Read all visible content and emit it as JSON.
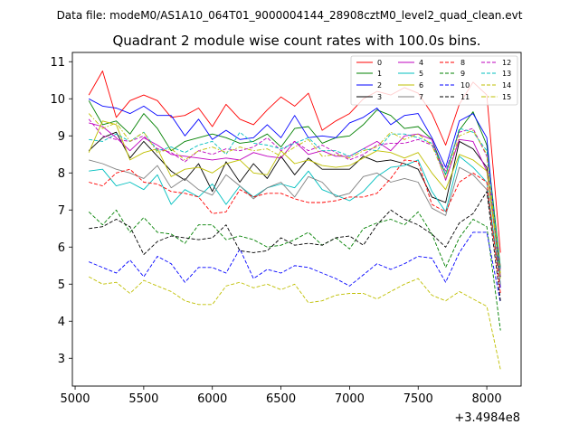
{
  "file_caption": "Data file: modeM0/AS1A10_064T01_9000004144_28908cztM0_level2_quad_clean.evt",
  "chart_data": {
    "type": "line",
    "title": "Quadrant 2 module wise count rates with 100.0s bins.",
    "xlabel": "",
    "ylabel": "",
    "x_offset_label": "+3.4984e8",
    "xlim": [
      4980,
      8250
    ],
    "ylim": [
      2.25,
      11.25
    ],
    "xticks": [
      5000,
      5500,
      6000,
      6500,
      7000,
      7500,
      8000
    ],
    "yticks": [
      3,
      4,
      5,
      6,
      7,
      8,
      9,
      10,
      11
    ],
    "x": [
      5100,
      5200,
      5300,
      5400,
      5500,
      5600,
      5700,
      5800,
      5900,
      6000,
      6100,
      6200,
      6300,
      6400,
      6500,
      6600,
      6700,
      6800,
      6900,
      7000,
      7100,
      7200,
      7300,
      7400,
      7500,
      7600,
      7700,
      7800,
      7900,
      8000,
      8100
    ],
    "legend_position": "upper right",
    "series": [
      {
        "name": "0",
        "color": "#ff0000",
        "style": "solid",
        "values": [
          10.1,
          10.75,
          9.5,
          9.95,
          10.1,
          9.95,
          9.5,
          9.55,
          9.75,
          9.25,
          9.85,
          9.45,
          9.3,
          9.7,
          10.05,
          9.8,
          10.15,
          9.15,
          9.4,
          9.6,
          10.0,
          10.2,
          10.1,
          10.3,
          10.15,
          9.6,
          8.75,
          9.85,
          10.45,
          10.1,
          5.85
        ]
      },
      {
        "name": "1",
        "color": "#008000",
        "style": "solid",
        "values": [
          9.95,
          9.3,
          9.4,
          9.05,
          9.6,
          9.2,
          8.6,
          8.85,
          8.95,
          9.05,
          8.95,
          8.8,
          8.85,
          9.05,
          8.7,
          9.2,
          9.25,
          8.8,
          8.95,
          9.0,
          9.3,
          9.7,
          9.55,
          9.2,
          9.25,
          8.9,
          7.95,
          9.15,
          9.65,
          8.75,
          5.45
        ]
      },
      {
        "name": "2",
        "color": "#0000ff",
        "style": "solid",
        "values": [
          10.0,
          9.8,
          9.75,
          9.6,
          9.8,
          9.55,
          9.55,
          9.0,
          9.45,
          8.9,
          9.15,
          8.9,
          8.95,
          9.3,
          8.95,
          9.55,
          8.95,
          9.0,
          8.95,
          9.35,
          9.5,
          9.75,
          9.3,
          9.55,
          9.6,
          8.95,
          8.15,
          9.4,
          9.6,
          8.95,
          4.9
        ]
      },
      {
        "name": "3",
        "color": "#000000",
        "style": "solid",
        "values": [
          8.6,
          8.95,
          9.1,
          8.4,
          8.85,
          8.45,
          8.05,
          7.8,
          8.25,
          7.5,
          8.3,
          7.75,
          8.25,
          7.85,
          8.45,
          7.95,
          8.4,
          8.1,
          8.1,
          8.1,
          8.45,
          8.3,
          8.35,
          8.25,
          8.1,
          7.35,
          7.2,
          8.85,
          8.65,
          8.15,
          5.2
        ]
      },
      {
        "name": "4",
        "color": "#bf00bf",
        "style": "solid",
        "values": [
          9.35,
          9.25,
          8.95,
          8.6,
          8.95,
          8.75,
          8.5,
          8.45,
          8.4,
          8.35,
          8.4,
          8.35,
          8.55,
          8.45,
          8.4,
          8.85,
          8.5,
          8.6,
          8.45,
          8.45,
          8.65,
          8.85,
          8.6,
          9.0,
          9.05,
          8.9,
          7.8,
          8.9,
          8.85,
          8.05,
          5.4
        ]
      },
      {
        "name": "5",
        "color": "#00bfbf",
        "style": "solid",
        "values": [
          8.05,
          8.1,
          7.65,
          7.75,
          7.55,
          7.95,
          7.15,
          7.55,
          7.35,
          7.7,
          7.15,
          7.65,
          7.35,
          7.6,
          7.7,
          7.6,
          8.05,
          7.55,
          7.4,
          7.25,
          7.5,
          7.9,
          8.15,
          8.2,
          8.35,
          7.5,
          6.95,
          8.45,
          8.15,
          7.75,
          5.0
        ]
      },
      {
        "name": "6",
        "color": "#bfbf00",
        "style": "solid",
        "values": [
          8.55,
          9.4,
          9.3,
          8.35,
          8.55,
          8.65,
          7.9,
          8.1,
          8.15,
          8.0,
          8.25,
          8.35,
          8.0,
          7.95,
          8.6,
          8.25,
          8.35,
          8.2,
          8.15,
          8.2,
          8.4,
          8.6,
          8.55,
          8.4,
          8.55,
          8.0,
          7.55,
          8.5,
          8.35,
          8.05,
          5.3
        ]
      },
      {
        "name": "7",
        "color": "#808080",
        "style": "solid",
        "values": [
          8.35,
          8.25,
          8.1,
          8.0,
          7.85,
          8.2,
          7.6,
          7.85,
          7.55,
          7.4,
          7.95,
          7.65,
          7.3,
          7.6,
          7.75,
          7.35,
          7.9,
          7.75,
          7.35,
          7.45,
          7.9,
          8.0,
          7.75,
          7.85,
          7.75,
          7.05,
          6.85,
          8.15,
          7.95,
          7.55,
          5.0
        ]
      },
      {
        "name": "8",
        "color": "#ff0000",
        "style": "dashed",
        "values": [
          7.75,
          7.65,
          8.0,
          8.1,
          7.75,
          7.7,
          7.5,
          7.45,
          7.35,
          6.9,
          6.95,
          7.55,
          7.35,
          7.45,
          7.45,
          7.3,
          7.2,
          7.2,
          7.25,
          7.35,
          7.35,
          7.45,
          7.85,
          8.35,
          8.3,
          7.15,
          6.95,
          7.75,
          8.0,
          7.75,
          4.75
        ]
      },
      {
        "name": "9",
        "color": "#008000",
        "style": "dashed",
        "values": [
          6.95,
          6.6,
          7.0,
          6.4,
          6.8,
          6.4,
          6.35,
          6.1,
          6.6,
          6.6,
          6.2,
          6.3,
          6.2,
          6.0,
          6.05,
          6.2,
          6.4,
          6.05,
          6.25,
          5.95,
          6.5,
          6.65,
          6.75,
          6.6,
          6.95,
          6.35,
          5.45,
          6.25,
          6.75,
          6.55,
          3.75
        ]
      },
      {
        "name": "10",
        "color": "#0000ff",
        "style": "dashed",
        "values": [
          5.6,
          5.45,
          5.3,
          5.65,
          5.2,
          5.75,
          5.55,
          5.05,
          5.45,
          5.45,
          5.3,
          5.95,
          5.15,
          5.4,
          5.3,
          5.5,
          5.45,
          5.3,
          5.15,
          4.95,
          5.25,
          5.55,
          5.4,
          5.55,
          5.75,
          5.7,
          5.05,
          5.85,
          6.4,
          6.4,
          4.5
        ]
      },
      {
        "name": "11",
        "color": "#000000",
        "style": "dashed",
        "values": [
          6.5,
          6.55,
          6.75,
          6.55,
          5.8,
          6.15,
          6.3,
          6.25,
          6.2,
          6.25,
          6.6,
          5.9,
          5.85,
          5.9,
          6.25,
          6.05,
          6.1,
          6.05,
          6.25,
          6.3,
          6.05,
          6.6,
          7.0,
          6.75,
          6.6,
          6.35,
          6.0,
          6.65,
          6.9,
          7.5,
          4.55
        ]
      },
      {
        "name": "12",
        "color": "#bf00bf",
        "style": "dashed",
        "values": [
          9.45,
          9.0,
          8.9,
          8.85,
          9.0,
          8.65,
          8.55,
          8.3,
          8.6,
          8.5,
          8.65,
          8.6,
          8.7,
          8.95,
          8.6,
          8.85,
          8.6,
          8.75,
          8.55,
          8.35,
          8.5,
          8.75,
          8.8,
          8.8,
          8.9,
          8.75,
          8.05,
          9.1,
          9.2,
          8.45,
          5.2
        ]
      },
      {
        "name": "13",
        "color": "#00bfbf",
        "style": "dashed",
        "values": [
          8.9,
          8.85,
          9.05,
          8.85,
          9.1,
          8.6,
          8.7,
          8.55,
          8.75,
          8.85,
          8.5,
          9.1,
          8.8,
          8.75,
          8.65,
          8.8,
          8.95,
          8.6,
          8.6,
          8.45,
          8.65,
          8.6,
          9.05,
          9.05,
          8.95,
          8.8,
          7.95,
          9.2,
          9.1,
          8.6,
          5.35
        ]
      },
      {
        "name": "14",
        "color": "#bfbf00",
        "style": "dashed",
        "values": [
          5.2,
          5.0,
          5.05,
          4.75,
          5.1,
          4.95,
          4.8,
          4.55,
          4.45,
          4.45,
          4.95,
          5.05,
          4.9,
          5.0,
          4.85,
          5.0,
          4.5,
          4.55,
          4.7,
          4.75,
          4.75,
          4.6,
          4.8,
          5.0,
          5.15,
          4.7,
          4.55,
          4.8,
          4.6,
          4.4,
          2.7
        ]
      },
      {
        "name": "15",
        "color": "#bfbf00",
        "style": "dashdot",
        "values": [
          9.6,
          9.2,
          9.35,
          8.85,
          9.1,
          8.55,
          8.65,
          8.35,
          8.6,
          8.7,
          8.55,
          8.7,
          8.6,
          8.65,
          8.45,
          8.7,
          8.9,
          8.45,
          8.5,
          8.4,
          8.6,
          8.7,
          9.1,
          8.9,
          9.05,
          8.75,
          7.85,
          9.0,
          9.15,
          8.5,
          5.15
        ]
      }
    ]
  }
}
